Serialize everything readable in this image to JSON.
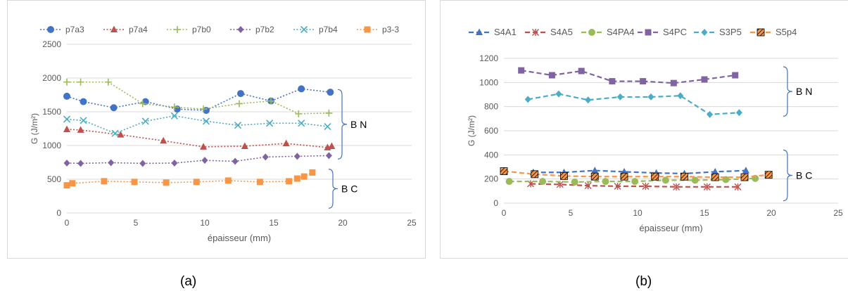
{
  "colors": {
    "p7a3": "#4472c4",
    "p7a4": "#c0504d",
    "p7b0": "#9bbb59",
    "p7b2": "#8064a2",
    "p7b4": "#4bacc6",
    "p3_3": "#f79646",
    "S4A1": "#4472c4",
    "S4A5": "#c0504d",
    "S4PA4": "#9bbb59",
    "S4PC": "#8064a2",
    "S3P5": "#4bacc6",
    "S5p4": "#f79646",
    "grid": "#d9d9d9",
    "text": "#595959",
    "bracket": "#4472c4"
  },
  "captions": {
    "a": "(a)",
    "b": "(b)"
  },
  "chart_data": [
    {
      "type": "line",
      "panel": "a",
      "xlabel": "épaisseur (mm)",
      "ylabel": "G (J/m²)",
      "xlim": [
        0,
        25
      ],
      "ylim": [
        0,
        2500
      ],
      "x_ticks": [
        "0",
        "5",
        "10",
        "15",
        "20",
        "25"
      ],
      "y_ticks": [
        "0",
        "500",
        "1000",
        "1500",
        "2000",
        "2500"
      ],
      "grid": true,
      "legend_position": "top",
      "series": [
        {
          "name": "p7a3",
          "marker": "circle",
          "x": [
            0,
            1.2,
            3.4,
            5.7,
            8.0,
            10.1,
            12.6,
            14.8,
            17.0,
            19.1
          ],
          "y": [
            1730,
            1650,
            1560,
            1650,
            1540,
            1520,
            1770,
            1660,
            1840,
            1790
          ]
        },
        {
          "name": "p7a4",
          "marker": "triangle",
          "x": [
            0,
            1.0,
            3.9,
            7.0,
            9.9,
            12.9,
            15.9,
            18.9,
            19.2
          ],
          "y": [
            1240,
            1230,
            1160,
            1070,
            980,
            990,
            1030,
            970,
            990
          ]
        },
        {
          "name": "p7b0",
          "marker": "plus",
          "x": [
            0,
            1.0,
            3.0,
            5.5,
            7.8,
            9.9,
            12.5,
            14.8,
            16.8,
            19.0
          ],
          "y": [
            1940,
            1940,
            1940,
            1620,
            1570,
            1540,
            1620,
            1660,
            1470,
            1480
          ]
        },
        {
          "name": "p7b2",
          "marker": "diamond",
          "x": [
            0,
            1.0,
            3.2,
            5.5,
            7.8,
            10.0,
            12.2,
            14.4,
            16.7,
            19.0
          ],
          "y": [
            740,
            735,
            745,
            735,
            740,
            780,
            765,
            830,
            840,
            850
          ]
        },
        {
          "name": "p7b4",
          "marker": "x",
          "x": [
            0,
            1.2,
            3.5,
            5.7,
            7.8,
            10.1,
            12.4,
            14.7,
            17.0,
            18.9
          ],
          "y": [
            1390,
            1370,
            1180,
            1360,
            1440,
            1360,
            1300,
            1330,
            1330,
            1280
          ]
        },
        {
          "name": "p3-3",
          "marker": "square",
          "x": [
            0,
            0.4,
            2.7,
            4.9,
            7.2,
            9.4,
            11.7,
            14.0,
            16.1,
            16.7,
            17.2,
            17.8
          ],
          "y": [
            410,
            440,
            470,
            460,
            450,
            460,
            480,
            460,
            470,
            510,
            540,
            600
          ]
        }
      ],
      "annotations": [
        {
          "text": "B N"
        },
        {
          "text": "B C"
        }
      ]
    },
    {
      "type": "line",
      "panel": "b",
      "xlabel": "épaisseur (mm)",
      "ylabel": "G (J/m²)",
      "xlim": [
        0,
        25
      ],
      "ylim": [
        0,
        1200
      ],
      "x_ticks": [
        "0",
        "5",
        "10",
        "15",
        "20",
        "25"
      ],
      "y_ticks": [
        "0",
        "200",
        "400",
        "600",
        "800",
        "1000",
        "1200"
      ],
      "grid": true,
      "legend_position": "top",
      "series": [
        {
          "name": "S4A1",
          "marker": "triangle",
          "x": [
            2.2,
            4.5,
            6.8,
            9.0,
            11.4,
            13.5,
            15.8,
            18.1
          ],
          "y": [
            255,
            255,
            270,
            260,
            250,
            245,
            260,
            270
          ]
        },
        {
          "name": "S4A5",
          "marker": "asterisk",
          "x": [
            2.0,
            4.2,
            6.3,
            8.5,
            10.6,
            12.9,
            15.2,
            17.5
          ],
          "y": [
            160,
            155,
            145,
            140,
            140,
            135,
            135,
            135
          ]
        },
        {
          "name": "S4PA4",
          "marker": "circle",
          "x": [
            0.4,
            2.9,
            5.3,
            7.6,
            9.8,
            12.1,
            14.3,
            16.6,
            18.8
          ],
          "y": [
            180,
            180,
            175,
            180,
            180,
            190,
            190,
            195,
            205
          ]
        },
        {
          "name": "S4PC",
          "marker": "square",
          "x": [
            1.3,
            3.6,
            5.8,
            8.1,
            10.4,
            12.7,
            15.0,
            17.3
          ],
          "y": [
            1100,
            1060,
            1095,
            1010,
            1010,
            995,
            1025,
            1060
          ]
        },
        {
          "name": "S3P5",
          "marker": "diamond",
          "x": [
            1.8,
            4.1,
            6.3,
            8.7,
            11.0,
            13.2,
            15.4,
            17.6
          ],
          "y": [
            860,
            905,
            855,
            880,
            880,
            890,
            735,
            750
          ]
        },
        {
          "name": "S5p4",
          "marker": "patterned-square",
          "x": [
            0,
            2.3,
            4.5,
            6.8,
            9.0,
            11.3,
            13.5,
            15.8,
            18.0,
            19.8
          ],
          "y": [
            265,
            240,
            225,
            220,
            220,
            220,
            220,
            215,
            215,
            235
          ]
        }
      ],
      "annotations": [
        {
          "text": "B N"
        },
        {
          "text": "B C"
        }
      ]
    }
  ]
}
